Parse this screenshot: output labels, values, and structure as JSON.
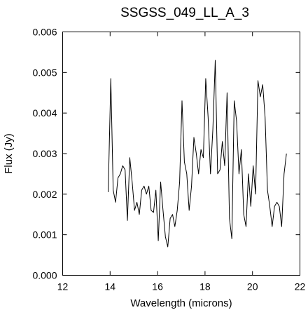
{
  "chart_data": {
    "type": "line",
    "title": "SSGSS_049_LL_A_3",
    "xlabel": "Wavelength (microns)",
    "ylabel": "Flux (Jy)",
    "xlim": [
      12,
      22
    ],
    "ylim": [
      0.0,
      0.006
    ],
    "xticks": [
      12,
      14,
      16,
      18,
      20,
      22
    ],
    "xtick_labels": [
      "12",
      "14",
      "16",
      "18",
      "20",
      "22"
    ],
    "yticks": [
      0.0,
      0.001,
      0.002,
      0.003,
      0.004,
      0.005,
      0.006
    ],
    "ytick_labels": [
      "0.000",
      "0.001",
      "0.002",
      "0.003",
      "0.004",
      "0.005",
      "0.006"
    ],
    "grid": false,
    "legend": "none",
    "series": [
      {
        "color": "#000000",
        "x": [
          13.92,
          14.03,
          14.13,
          14.23,
          14.33,
          14.43,
          14.53,
          14.63,
          14.73,
          14.83,
          14.93,
          15.03,
          15.13,
          15.23,
          15.33,
          15.43,
          15.53,
          15.63,
          15.73,
          15.83,
          15.93,
          16.03,
          16.13,
          16.23,
          16.33,
          16.43,
          16.53,
          16.63,
          16.73,
          16.83,
          16.93,
          17.03,
          17.13,
          17.23,
          17.33,
          17.43,
          17.53,
          17.63,
          17.73,
          17.83,
          17.93,
          18.03,
          18.13,
          18.23,
          18.33,
          18.43,
          18.53,
          18.63,
          18.73,
          18.83,
          18.93,
          19.03,
          19.13,
          19.23,
          19.33,
          19.43,
          19.53,
          19.63,
          19.73,
          19.83,
          19.93,
          20.03,
          20.13,
          20.23,
          20.33,
          20.43,
          20.53,
          20.63,
          20.73,
          20.83,
          20.93,
          21.03,
          21.13,
          21.23,
          21.33,
          21.43
        ],
        "y": [
          0.00205,
          0.00485,
          0.0021,
          0.0018,
          0.0024,
          0.0025,
          0.0027,
          0.0026,
          0.00135,
          0.0029,
          0.0023,
          0.0016,
          0.0018,
          0.0015,
          0.0021,
          0.0022,
          0.002,
          0.0022,
          0.0016,
          0.00155,
          0.0021,
          0.00085,
          0.0023,
          0.0016,
          0.00095,
          0.0007,
          0.0014,
          0.0015,
          0.0012,
          0.0016,
          0.0023,
          0.0043,
          0.0028,
          0.0025,
          0.0016,
          0.0022,
          0.0034,
          0.003,
          0.0025,
          0.0031,
          0.0029,
          0.00485,
          0.0039,
          0.0025,
          0.0036,
          0.0053,
          0.0025,
          0.0026,
          0.0033,
          0.0027,
          0.0045,
          0.0014,
          0.0009,
          0.0043,
          0.0038,
          0.0025,
          0.0031,
          0.0015,
          0.0012,
          0.0025,
          0.0017,
          0.0027,
          0.002,
          0.0048,
          0.0044,
          0.0047,
          0.0039,
          0.0021,
          0.0017,
          0.0012,
          0.0017,
          0.0018,
          0.0017,
          0.0012,
          0.0025,
          0.003
        ]
      }
    ]
  }
}
